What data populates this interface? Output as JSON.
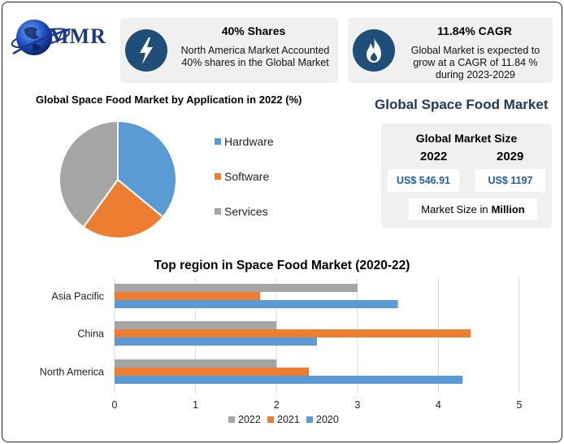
{
  "logo": {
    "text": "MMR"
  },
  "icons": {
    "lightning": "lightning-icon",
    "flame": "flame-icon",
    "globe": "globe-icon"
  },
  "stat_shares": {
    "title": "40% Shares",
    "line1": "North America Market Accounted",
    "line2": "40% shares in the Global Market"
  },
  "stat_cagr": {
    "title": "11.84% CAGR",
    "line1": "Global Market is expected to",
    "line2": "grow at a CAGR of 11.84 %",
    "line3": "during 2023-2029"
  },
  "main_title": "Global Space Food Market",
  "market_size": {
    "heading": "Global Market Size",
    "year_a": "2022",
    "year_b": "2029",
    "value_a": "US$ 546.91",
    "value_b": "US$ 1197",
    "unit_prefix": "Market Size in",
    "unit_bold": "Million"
  },
  "colors": {
    "blue": "#5b9bd5",
    "orange": "#ed7d31",
    "gray": "#a5a5a5",
    "navy": "#1f4e79"
  },
  "chart_data": [
    {
      "type": "pie",
      "title": "Global Space Food Market by Application in 2022 (%)",
      "legend_position": "right",
      "slices": [
        {
          "label": "Hardware",
          "value": 36,
          "color": "#5b9bd5"
        },
        {
          "label": "Software",
          "value": 24,
          "color": "#ed7d31"
        },
        {
          "label": "Services",
          "value": 40,
          "color": "#a5a5a5"
        }
      ]
    },
    {
      "type": "bar",
      "orientation": "horizontal",
      "title": "Top region in Space Food Market (2020-22)",
      "categories": [
        "Asia Pacific",
        "China",
        "North America"
      ],
      "series": [
        {
          "name": "2022",
          "color": "#a5a5a5",
          "values": [
            3.0,
            2.0,
            2.0
          ]
        },
        {
          "name": "2021",
          "color": "#ed7d31",
          "values": [
            1.8,
            4.4,
            2.4
          ]
        },
        {
          "name": "2020",
          "color": "#5b9bd5",
          "values": [
            3.5,
            2.5,
            4.3
          ]
        }
      ],
      "xlim": [
        0,
        5
      ],
      "xticks": [
        "0",
        "1",
        "2",
        "3",
        "4",
        "5"
      ],
      "grid": true,
      "legend_position": "bottom"
    }
  ]
}
